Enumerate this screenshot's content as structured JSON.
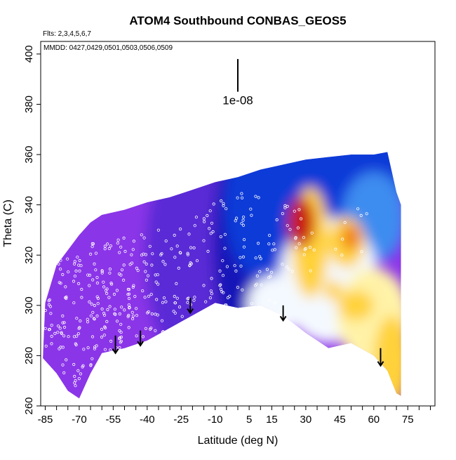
{
  "chart_data": {
    "type": "heatmap",
    "title": "ATOM4 Southbound CONBAS_GEOS5",
    "flights_label": "Flts: 2,3,4,5,6,7",
    "dates_label": "MMDD: 0427,0429,0501,0503,0506,0509",
    "xlabel": "Latitude (deg N)",
    "ylabel": "Theta (C)",
    "xlim": [
      -87,
      87
    ],
    "ylim": [
      260,
      405
    ],
    "x_ticks": [
      -85,
      -70,
      -55,
      -40,
      -25,
      -10,
      5,
      15,
      30,
      45,
      60,
      75
    ],
    "y_ticks": [
      260,
      280,
      300,
      320,
      340,
      360,
      380,
      400
    ],
    "scale_label": "1e-08",
    "scale_bar": {
      "x": 0,
      "y_from": 385,
      "y_to": 398
    },
    "colorscale": [
      "#8b35e8",
      "#5a2ad6",
      "#1919b8",
      "#0f3ad8",
      "#3c8cf0",
      "#9ccaf5",
      "#f4f9ff",
      "#fff3a8",
      "#ffd23a",
      "#f07a10",
      "#c81e0a"
    ],
    "region_outline": [
      {
        "lat": -86,
        "top": 279,
        "bottom": 279
      },
      {
        "lat": -85,
        "top": 301,
        "bottom": 278
      },
      {
        "lat": -80,
        "top": 316,
        "bottom": 273
      },
      {
        "lat": -75,
        "top": 322,
        "bottom": 266
      },
      {
        "lat": -70,
        "top": 328,
        "bottom": 263
      },
      {
        "lat": -65,
        "top": 333,
        "bottom": 273
      },
      {
        "lat": -60,
        "top": 336,
        "bottom": 281
      },
      {
        "lat": -50,
        "top": 338,
        "bottom": 283
      },
      {
        "lat": -40,
        "top": 341,
        "bottom": 286
      },
      {
        "lat": -30,
        "top": 343,
        "bottom": 291
      },
      {
        "lat": -20,
        "top": 346,
        "bottom": 296
      },
      {
        "lat": -10,
        "top": 349,
        "bottom": 301
      },
      {
        "lat": 0,
        "top": 351,
        "bottom": 299
      },
      {
        "lat": 10,
        "top": 354,
        "bottom": 300
      },
      {
        "lat": 20,
        "top": 356,
        "bottom": 296
      },
      {
        "lat": 30,
        "top": 358,
        "bottom": 289
      },
      {
        "lat": 40,
        "top": 359,
        "bottom": 283
      },
      {
        "lat": 50,
        "top": 360,
        "bottom": 285
      },
      {
        "lat": 60,
        "top": 360,
        "bottom": 280
      },
      {
        "lat": 66,
        "top": 361,
        "bottom": 274
      },
      {
        "lat": 70,
        "top": 345,
        "bottom": 265
      },
      {
        "lat": 72,
        "top": 340,
        "bottom": 264
      }
    ],
    "field": [
      {
        "lat": -85,
        "theta": 300,
        "value": 0.02,
        "rlat": 40,
        "rth": 60
      },
      {
        "lat": -45,
        "theta": 310,
        "value": 0.03,
        "rlat": 40,
        "rth": 60
      },
      {
        "lat": -25,
        "theta": 320,
        "value": 0.05,
        "rlat": 16,
        "rth": 40
      },
      {
        "lat": -8,
        "theta": 320,
        "value": 0.14,
        "rlat": 12,
        "rth": 40
      },
      {
        "lat": 3,
        "theta": 325,
        "value": 0.22,
        "rlat": 14,
        "rth": 45
      },
      {
        "lat": 12,
        "theta": 340,
        "value": 0.27,
        "rlat": 18,
        "rth": 30
      },
      {
        "lat": 45,
        "theta": 350,
        "value": 0.27,
        "rlat": 30,
        "rth": 25
      },
      {
        "lat": 60,
        "theta": 335,
        "value": 0.36,
        "rlat": 14,
        "rth": 18
      },
      {
        "lat": 16,
        "theta": 300,
        "value": 0.56,
        "rlat": 12,
        "rth": 12
      },
      {
        "lat": 40,
        "theta": 310,
        "value": 0.62,
        "rlat": 22,
        "rth": 25
      },
      {
        "lat": 60,
        "theta": 295,
        "value": 0.72,
        "rlat": 16,
        "rth": 20
      },
      {
        "lat": 68,
        "theta": 278,
        "value": 0.82,
        "rlat": 8,
        "rth": 18
      },
      {
        "lat": 32,
        "theta": 325,
        "value": 0.76,
        "rlat": 8,
        "rth": 22
      },
      {
        "lat": 28,
        "theta": 333,
        "value": 0.95,
        "rlat": 6,
        "rth": 10
      },
      {
        "lat": 48,
        "theta": 325,
        "value": 0.84,
        "rlat": 8,
        "rth": 10
      },
      {
        "lat": 50,
        "theta": 327,
        "value": 0.93,
        "rlat": 4,
        "rth": 5
      },
      {
        "lat": 52,
        "theta": 300,
        "value": 0.8,
        "rlat": 8,
        "rth": 6
      },
      {
        "lat": 42,
        "theta": 306,
        "value": 0.82,
        "rlat": 4,
        "rth": 4
      }
    ],
    "arrows": [
      {
        "lat": -54,
        "theta_top": 288,
        "theta_tip": 281
      },
      {
        "lat": -43,
        "theta_top": 290,
        "theta_tip": 284
      },
      {
        "lat": -21,
        "theta_top": 303,
        "theta_tip": 297
      },
      {
        "lat": 20,
        "theta_top": 300,
        "theta_tip": 294
      },
      {
        "lat": 63,
        "theta_top": 283,
        "theta_tip": 276
      }
    ],
    "samples": [
      {
        "lat": -83,
        "theta_min": 282,
        "theta_max": 318,
        "n": 18
      },
      {
        "lat": -77,
        "theta_min": 272,
        "theta_max": 320,
        "n": 30
      },
      {
        "lat": -70,
        "theta_min": 268,
        "theta_max": 323,
        "n": 34
      },
      {
        "lat": -64,
        "theta_min": 275,
        "theta_max": 325,
        "n": 34
      },
      {
        "lat": -58,
        "theta_min": 281,
        "theta_max": 326,
        "n": 32
      },
      {
        "lat": -52,
        "theta_min": 283,
        "theta_max": 327,
        "n": 30
      },
      {
        "lat": -46,
        "theta_min": 285,
        "theta_max": 328,
        "n": 28
      },
      {
        "lat": -40,
        "theta_min": 287,
        "theta_max": 329,
        "n": 24
      },
      {
        "lat": -34,
        "theta_min": 289,
        "theta_max": 330,
        "n": 20
      },
      {
        "lat": -27,
        "theta_min": 291,
        "theta_max": 331,
        "n": 18
      },
      {
        "lat": -20,
        "theta_min": 296,
        "theta_max": 337,
        "n": 18
      },
      {
        "lat": -13,
        "theta_min": 299,
        "theta_max": 341,
        "n": 18
      },
      {
        "lat": -6,
        "theta_min": 300,
        "theta_max": 344,
        "n": 20
      },
      {
        "lat": 1,
        "theta_min": 300,
        "theta_max": 346,
        "n": 18
      },
      {
        "lat": 8,
        "theta_min": 300,
        "theta_max": 346,
        "n": 14
      },
      {
        "lat": 15,
        "theta_min": 300,
        "theta_max": 345,
        "n": 12
      },
      {
        "lat": 22,
        "theta_min": 310,
        "theta_max": 340,
        "n": 10
      },
      {
        "lat": 27,
        "theta_min": 320,
        "theta_max": 340,
        "n": 10
      },
      {
        "lat": 32,
        "theta_min": 310,
        "theta_max": 330,
        "n": 6
      },
      {
        "lat": 45,
        "theta_min": 318,
        "theta_max": 335,
        "n": 4
      },
      {
        "lat": 55,
        "theta_min": 320,
        "theta_max": 340,
        "n": 4
      }
    ]
  }
}
